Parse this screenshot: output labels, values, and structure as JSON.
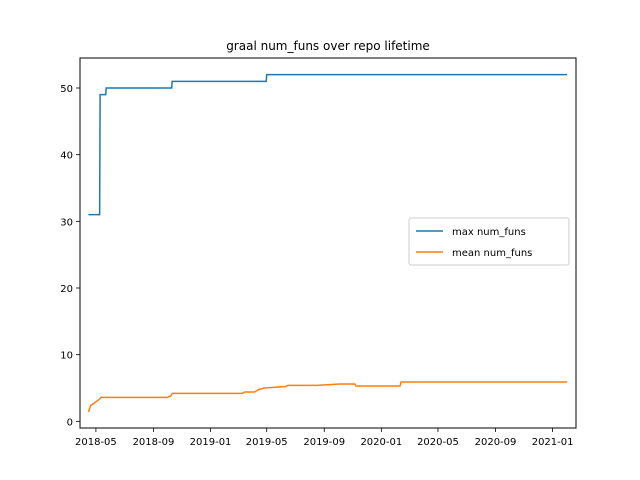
{
  "chart_data": {
    "type": "line",
    "title": "graal num_funs over repo lifetime",
    "xlabel": "",
    "ylabel": "",
    "grid": false,
    "legend_position": "center-right",
    "x_ticks": [
      "2018-05",
      "2018-09",
      "2019-01",
      "2019-05",
      "2019-09",
      "2020-01",
      "2020-05",
      "2020-09",
      "2021-01"
    ],
    "y_ticks": [
      0,
      10,
      20,
      30,
      40,
      50
    ],
    "ylim": [
      -1,
      54.5
    ],
    "xlim": [
      "2018-03-28",
      "2021-02-20"
    ],
    "series": [
      {
        "name": "max num_funs",
        "color": "#1f77b4",
        "step": true,
        "x": [
          "2018-04-15",
          "2018-05-09",
          "2018-05-10",
          "2018-05-22",
          "2018-05-23",
          "2018-10-10",
          "2018-10-11",
          "2019-04-30",
          "2019-05-01",
          "2021-02-01"
        ],
        "y": [
          31,
          31,
          49,
          49,
          50,
          50,
          51,
          51,
          52,
          52
        ]
      },
      {
        "name": "mean num_funs",
        "color": "#ff7f0e",
        "step": false,
        "x": [
          "2018-04-15",
          "2018-04-20",
          "2018-04-25",
          "2018-05-08",
          "2018-05-12",
          "2018-06-20",
          "2018-10-01",
          "2018-10-08",
          "2018-10-11",
          "2019-03-10",
          "2019-03-15",
          "2019-04-05",
          "2019-04-12",
          "2019-04-25",
          "2019-05-15",
          "2019-06-10",
          "2019-06-15",
          "2019-08-15",
          "2019-10-05",
          "2019-11-05",
          "2019-11-08",
          "2020-01-01",
          "2020-02-10",
          "2020-02-12",
          "2021-02-01"
        ],
        "y": [
          1.4,
          2.4,
          2.6,
          3.3,
          3.6,
          3.6,
          3.6,
          3.8,
          4.2,
          4.2,
          4.4,
          4.4,
          4.7,
          5.0,
          5.1,
          5.2,
          5.4,
          5.4,
          5.6,
          5.6,
          5.3,
          5.3,
          5.3,
          5.9,
          5.9
        ]
      }
    ]
  }
}
